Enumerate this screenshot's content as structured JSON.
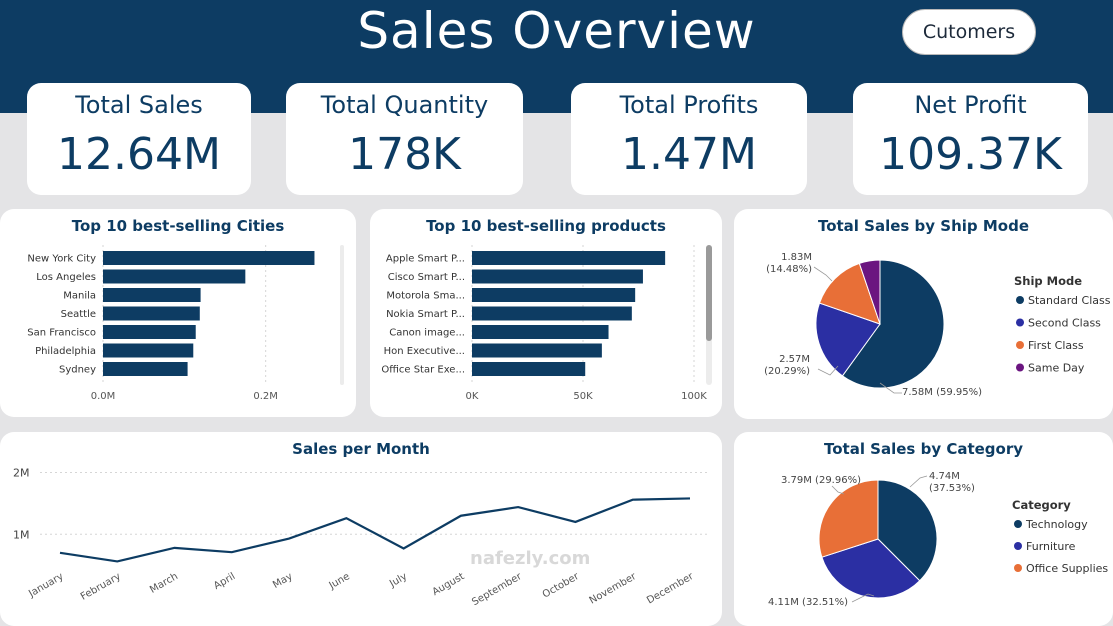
{
  "header": {
    "title": "Sales Overview",
    "nav_button": "Cutomers"
  },
  "kpis": [
    {
      "label": "Total Sales",
      "value": "12.64M"
    },
    {
      "label": "Total Quantity",
      "value": "178K"
    },
    {
      "label": "Total Profits",
      "value": "1.47M"
    },
    {
      "label": "Net Profit",
      "value": "109.37K"
    }
  ],
  "colors": {
    "brand": "#0d3c63",
    "standard": "#0d3c63",
    "second": "#2b2fa3",
    "first": "#e86f37",
    "sameday": "#6b1580",
    "background": "#e4e4e6"
  },
  "watermark": "nafezly.com",
  "chart_data": [
    {
      "type": "bar",
      "orientation": "horizontal",
      "title": "Top 10 best-selling Cities",
      "categories": [
        "New York City",
        "Los Angeles",
        "Manila",
        "Seattle",
        "San Francisco",
        "Philadelphia",
        "Sydney"
      ],
      "values": [
        0.26,
        0.175,
        0.12,
        0.119,
        0.114,
        0.111,
        0.104
      ],
      "xlim": [
        0,
        0.3
      ],
      "ticks": [
        {
          "v": 0,
          "label": "0.0M"
        },
        {
          "v": 0.2,
          "label": "0.2M"
        }
      ],
      "grid": true
    },
    {
      "type": "bar",
      "orientation": "horizontal",
      "title": "Top 10 best-selling products",
      "categories": [
        "Apple Smart P...",
        "Cisco Smart P...",
        "Motorola Sma...",
        "Nokia Smart P...",
        "Canon image...",
        "Hon Executive...",
        "Office Star Exe..."
      ],
      "values": [
        87,
        77,
        73.5,
        72,
        61.5,
        58.5,
        51
      ],
      "xlim": [
        0,
        100
      ],
      "ticks": [
        {
          "v": 0,
          "label": "0K"
        },
        {
          "v": 50,
          "label": "50K"
        },
        {
          "v": 100,
          "label": "100K"
        }
      ],
      "grid": true
    },
    {
      "type": "pie",
      "title": "Total Sales by Ship Mode",
      "legend_title": "Ship Mode",
      "legend_position": "right",
      "slices": [
        {
          "name": "Standard Class",
          "value": 7.58,
          "label": "7.58M (59.95%)",
          "color": "#0d3c63"
        },
        {
          "name": "Second Class",
          "value": 2.57,
          "label": "2.57M (20.29%)",
          "color": "#2b2fa3"
        },
        {
          "name": "First Class",
          "value": 1.83,
          "label": "1.83M (14.48%)",
          "color": "#e86f37"
        },
        {
          "name": "Same Day",
          "value": 0.66,
          "label": "",
          "color": "#6b1580"
        }
      ]
    },
    {
      "type": "line",
      "title": "Sales per Month",
      "x": [
        "January",
        "February",
        "March",
        "April",
        "May",
        "June",
        "July",
        "August",
        "September",
        "October",
        "November",
        "December"
      ],
      "values": [
        0.7,
        0.56,
        0.78,
        0.71,
        0.93,
        1.26,
        0.77,
        1.3,
        1.44,
        1.2,
        1.56,
        1.58
      ],
      "ylim": [
        0,
        2.3
      ],
      "yticks": [
        {
          "v": 1,
          "label": "1M"
        },
        {
          "v": 2,
          "label": "2M"
        }
      ],
      "grid": true
    },
    {
      "type": "pie",
      "title": "Total Sales by Category",
      "legend_title": "Category",
      "legend_position": "right",
      "slices": [
        {
          "name": "Technology",
          "value": 4.74,
          "label": "4.74M (37.53%)",
          "color": "#0d3c63"
        },
        {
          "name": "Furniture",
          "value": 4.11,
          "label": "4.11M (32.51%)",
          "color": "#2b2fa3"
        },
        {
          "name": "Office Supplies",
          "value": 3.79,
          "label": "3.79M (29.96%)",
          "color": "#e86f37"
        }
      ]
    }
  ]
}
